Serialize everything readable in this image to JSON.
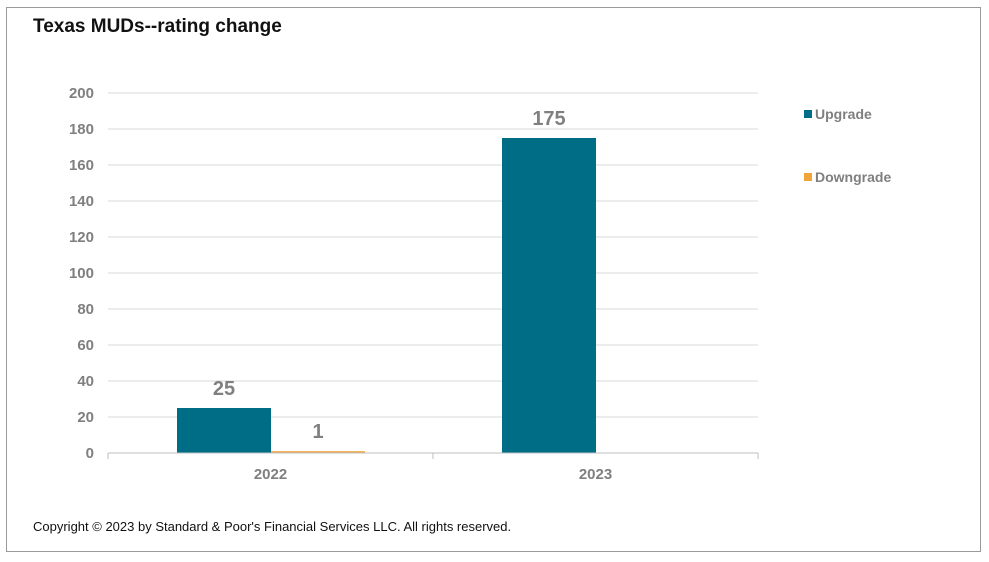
{
  "chart_data": {
    "type": "bar",
    "title": "Texas MUDs--rating change",
    "categories": [
      "2022",
      "2023"
    ],
    "series": [
      {
        "name": "Upgrade",
        "color": "#006d87",
        "values": [
          25,
          175
        ]
      },
      {
        "name": "Downgrade",
        "color": "#f0a43a",
        "values": [
          1,
          0
        ]
      }
    ],
    "data_labels": [
      [
        "25",
        "175"
      ],
      [
        "1",
        ""
      ]
    ],
    "ylim": [
      0,
      200
    ],
    "yticks": [
      0,
      20,
      40,
      60,
      80,
      100,
      120,
      140,
      160,
      180,
      200
    ],
    "xlabel": "",
    "ylabel": "",
    "grid": true,
    "legend_position": "right"
  },
  "footer": {
    "copyright": "Copyright © 2023 by Standard & Poor's Financial Services LLC. All rights reserved."
  }
}
